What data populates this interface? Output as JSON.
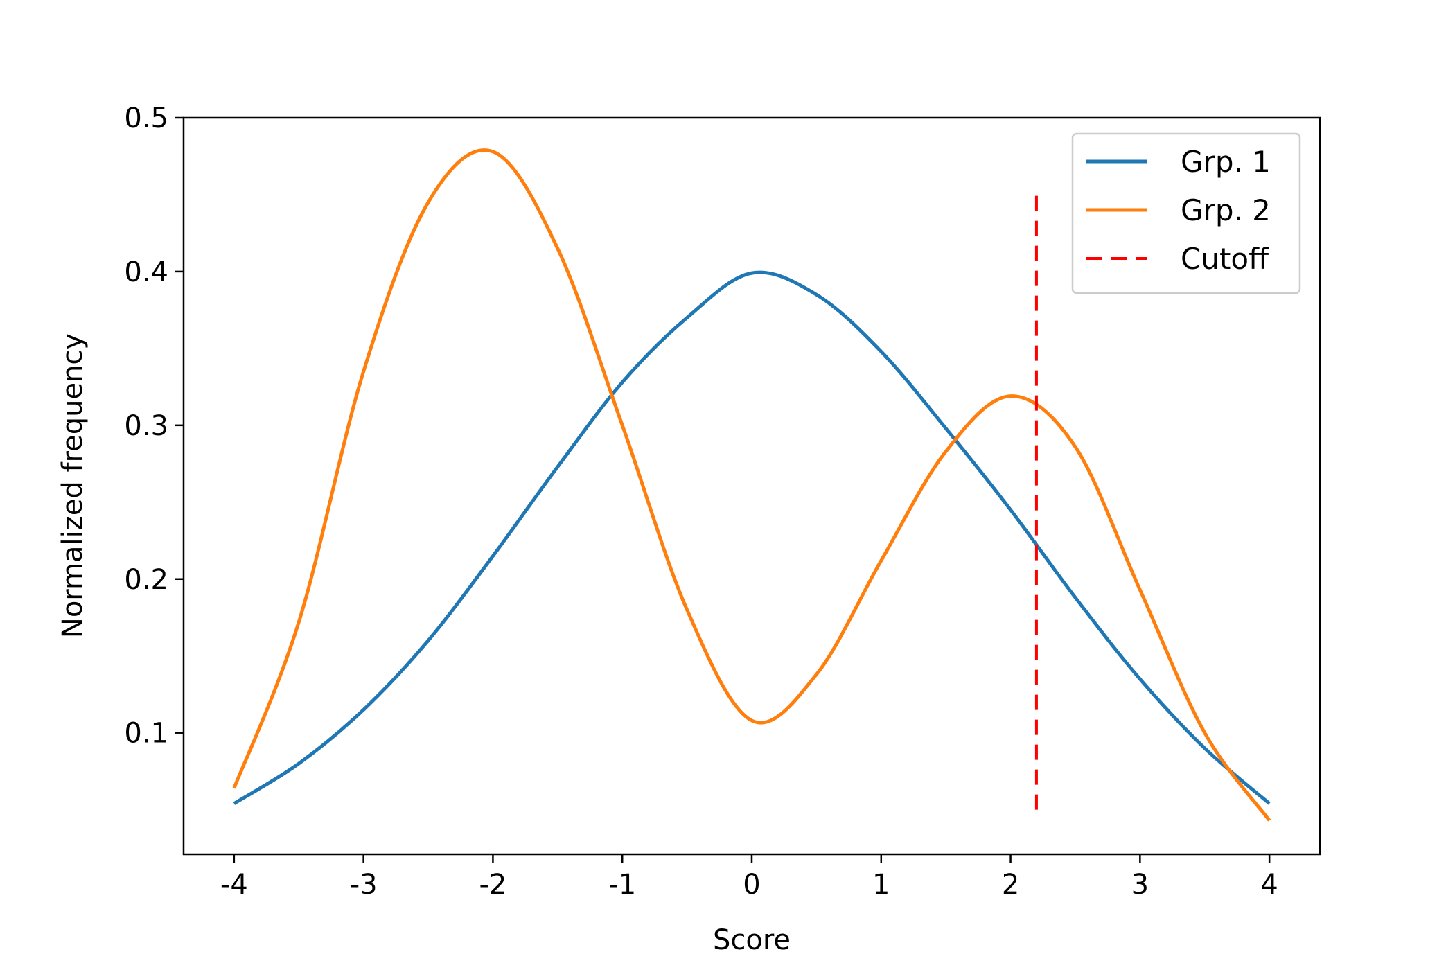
{
  "chart_data": {
    "type": "line",
    "title": "",
    "xlabel": "Score",
    "ylabel": "Normalized frequency",
    "xlim": [
      -4.39,
      4.39
    ],
    "ylim": [
      0.021,
      0.5
    ],
    "x_ticks": [
      -4,
      -3,
      -2,
      -1,
      0,
      1,
      2,
      3,
      4
    ],
    "x_tick_labels": [
      "-4",
      "-3",
      "-2",
      "-1",
      "0",
      "1",
      "2",
      "3",
      "4"
    ],
    "y_ticks": [
      0.1,
      0.2,
      0.3,
      0.4,
      0.5
    ],
    "y_tick_labels": [
      "0.1",
      "0.2",
      "0.3",
      "0.4",
      "0.5"
    ],
    "grid": false,
    "legend": {
      "position": "upper right",
      "entries": [
        "Grp. 1",
        "Grp. 2",
        "Cutoff"
      ]
    },
    "series": [
      {
        "name": "Grp. 1",
        "color": "#1f77b4",
        "style": "solid",
        "x": [
          -4,
          -3.5,
          -3,
          -2.5,
          -2,
          -1.5,
          -1,
          -0.5,
          0,
          0.5,
          1,
          1.5,
          2,
          2.5,
          3,
          3.5,
          4
        ],
        "y": [
          0.054,
          0.08,
          0.115,
          0.16,
          0.215,
          0.273,
          0.328,
          0.37,
          0.399,
          0.385,
          0.348,
          0.298,
          0.245,
          0.188,
          0.135,
          0.09,
          0.054
        ]
      },
      {
        "name": "Grp. 2",
        "color": "#ff7f0e",
        "style": "solid",
        "x": [
          -4,
          -3.5,
          -3,
          -2.5,
          -2,
          -1.5,
          -1,
          -0.5,
          0,
          0.5,
          1,
          1.5,
          2,
          2.5,
          3,
          3.5,
          4
        ],
        "y": [
          0.064,
          0.172,
          0.335,
          0.445,
          0.478,
          0.415,
          0.3,
          0.18,
          0.108,
          0.138,
          0.212,
          0.283,
          0.319,
          0.286,
          0.193,
          0.1,
          0.043
        ]
      },
      {
        "name": "Cutoff",
        "color": "#ff0000",
        "style": "dashed",
        "x": [
          2.2,
          2.2
        ],
        "y": [
          0.05,
          0.45
        ]
      }
    ]
  }
}
